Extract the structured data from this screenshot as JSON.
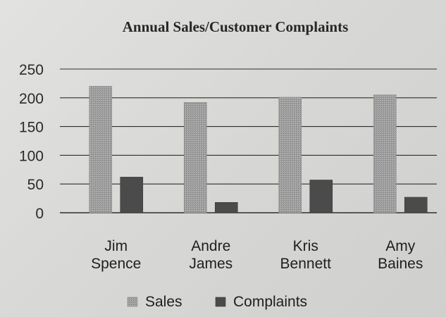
{
  "chart_data": {
    "type": "bar",
    "title": "Annual Sales/Customer Complaints",
    "xlabel": "",
    "ylabel": "",
    "categories": [
      [
        "Jim",
        "Spence"
      ],
      [
        "Andre",
        "James"
      ],
      [
        "Kris",
        "Bennett"
      ],
      [
        "Amy",
        "Baines"
      ]
    ],
    "series": [
      {
        "name": "Sales",
        "values": [
          220,
          192,
          201,
          205
        ],
        "color": "#9a9a9a"
      },
      {
        "name": "Complaints",
        "values": [
          62,
          18,
          57,
          27
        ],
        "color": "#4a4a4a"
      }
    ],
    "ylim": [
      0,
      250
    ],
    "yticks": [
      0,
      50,
      100,
      150,
      200,
      250
    ],
    "grid": true,
    "legend": "bottom"
  }
}
